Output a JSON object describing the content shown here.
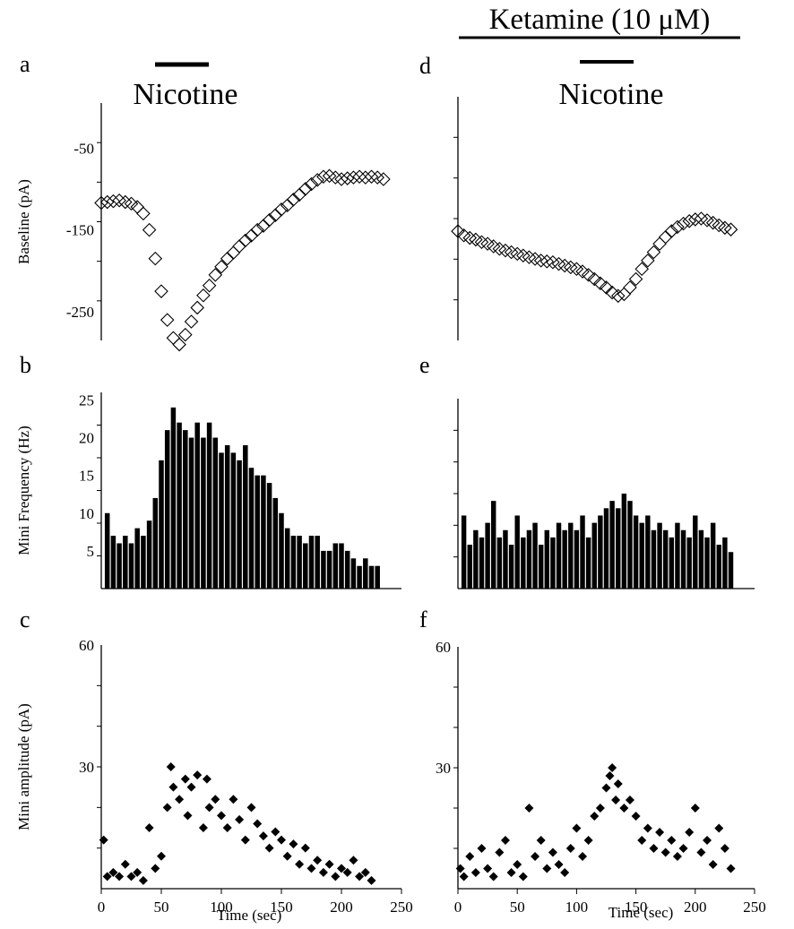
{
  "figure": {
    "header": "Ketamine (10 μM)",
    "drug_label_left": "Nicotine",
    "drug_label_right": "Nicotine",
    "panel_letters": [
      "a",
      "b",
      "c",
      "d",
      "e",
      "f"
    ],
    "x_axis_label": "Time (sec)",
    "colors": {
      "ink": "#000000",
      "background": "#ffffff"
    }
  },
  "chart_data": [
    {
      "id": "a",
      "type": "scatter",
      "marker": "open-diamond",
      "ylabel": "Baseline (pA)",
      "ylim": [
        -285,
        5
      ],
      "yticks": [
        -50,
        -150,
        -250
      ],
      "xlim": [
        0,
        250
      ],
      "series": [
        {
          "x": [
            0,
            5,
            10,
            15,
            20,
            25,
            30,
            35,
            40,
            45,
            50,
            55,
            60,
            65,
            70,
            75,
            80,
            85,
            90,
            95,
            100,
            105,
            110,
            115,
            120,
            125,
            130,
            135,
            140,
            145,
            150,
            155,
            160,
            165,
            170,
            175,
            180,
            185,
            190,
            195,
            200,
            205,
            210,
            215,
            220,
            225,
            230,
            235
          ],
          "values": [
            -117,
            -116,
            -115,
            -114,
            -116,
            -118,
            -122,
            -130,
            -150,
            -185,
            -225,
            -260,
            -282,
            -290,
            -278,
            -262,
            -245,
            -230,
            -218,
            -205,
            -195,
            -185,
            -178,
            -170,
            -163,
            -157,
            -150,
            -145,
            -138,
            -132,
            -125,
            -120,
            -113,
            -107,
            -100,
            -94,
            -89,
            -85,
            -84,
            -86,
            -88,
            -87,
            -86,
            -85,
            -86,
            -85,
            -86,
            -88
          ]
        }
      ]
    },
    {
      "id": "b",
      "type": "bar",
      "ylabel": "Mini Frequency (Hz)",
      "ylim": [
        0,
        26
      ],
      "yticks": [
        5,
        10,
        15,
        20,
        25
      ],
      "xlim": [
        0,
        250
      ],
      "series": [
        {
          "x": [
            5,
            10,
            15,
            20,
            25,
            30,
            35,
            40,
            45,
            50,
            55,
            60,
            65,
            70,
            75,
            80,
            85,
            90,
            95,
            100,
            105,
            110,
            115,
            120,
            125,
            130,
            135,
            140,
            145,
            150,
            155,
            160,
            165,
            170,
            175,
            180,
            185,
            190,
            195,
            200,
            205,
            210,
            215,
            220,
            225,
            230
          ],
          "values": [
            10,
            7,
            6,
            7,
            6,
            8,
            7,
            9,
            12,
            17,
            21,
            24,
            22,
            21,
            20,
            22,
            20,
            22,
            20,
            18,
            19,
            18,
            17,
            19,
            16,
            15,
            15,
            14,
            12,
            10,
            8,
            7,
            7,
            6,
            7,
            7,
            5,
            5,
            6,
            6,
            5,
            4,
            3,
            4,
            3,
            3
          ]
        }
      ]
    },
    {
      "id": "c",
      "type": "scatter",
      "marker": "filled-diamond",
      "ylabel": "Mini amplitude (pA)",
      "ylim": [
        0,
        60
      ],
      "yticks": [
        30,
        60
      ],
      "xlim": [
        0,
        250
      ],
      "xticks": [
        0,
        50,
        100,
        150,
        200,
        250
      ],
      "xlabel": "Time (sec)",
      "series": [
        {
          "x": [
            2,
            5,
            10,
            15,
            20,
            25,
            30,
            35,
            40,
            45,
            50,
            55,
            58,
            60,
            65,
            70,
            72,
            75,
            80,
            85,
            88,
            90,
            95,
            100,
            105,
            110,
            115,
            120,
            125,
            130,
            135,
            140,
            145,
            150,
            155,
            160,
            165,
            170,
            175,
            180,
            185,
            190,
            195,
            200,
            205,
            210,
            215,
            220,
            225
          ],
          "values": [
            12,
            3,
            4,
            3,
            6,
            3,
            4,
            2,
            15,
            5,
            8,
            20,
            30,
            25,
            22,
            27,
            18,
            25,
            28,
            15,
            27,
            20,
            22,
            18,
            15,
            22,
            17,
            12,
            20,
            16,
            13,
            10,
            14,
            12,
            8,
            11,
            6,
            10,
            5,
            7,
            4,
            6,
            3,
            5,
            4,
            7,
            3,
            4,
            2
          ]
        }
      ]
    },
    {
      "id": "d",
      "type": "scatter",
      "marker": "open-diamond",
      "ylim": [
        -285,
        5
      ],
      "xlim": [
        0,
        250
      ],
      "series": [
        {
          "x": [
            0,
            5,
            10,
            15,
            20,
            25,
            30,
            35,
            40,
            45,
            50,
            55,
            60,
            65,
            70,
            75,
            80,
            85,
            90,
            95,
            100,
            105,
            110,
            115,
            120,
            125,
            130,
            135,
            140,
            145,
            150,
            155,
            160,
            165,
            170,
            175,
            180,
            185,
            190,
            195,
            200,
            205,
            210,
            215,
            220,
            225,
            230
          ],
          "values": [
            -155,
            -160,
            -163,
            -165,
            -168,
            -170,
            -173,
            -176,
            -178,
            -180,
            -182,
            -184,
            -186,
            -188,
            -190,
            -191,
            -192,
            -194,
            -196,
            -198,
            -200,
            -203,
            -207,
            -212,
            -217,
            -222,
            -228,
            -232,
            -230,
            -222,
            -212,
            -200,
            -190,
            -180,
            -170,
            -162,
            -155,
            -150,
            -146,
            -143,
            -141,
            -140,
            -142,
            -145,
            -148,
            -151,
            -153
          ]
        }
      ]
    },
    {
      "id": "e",
      "type": "bar",
      "ylim": [
        0,
        26
      ],
      "xlim": [
        0,
        250
      ],
      "series": [
        {
          "x": [
            5,
            10,
            15,
            20,
            25,
            30,
            35,
            40,
            45,
            50,
            55,
            60,
            65,
            70,
            75,
            80,
            85,
            90,
            95,
            100,
            105,
            110,
            115,
            120,
            125,
            130,
            135,
            140,
            145,
            150,
            155,
            160,
            165,
            170,
            175,
            180,
            185,
            190,
            195,
            200,
            205,
            210,
            215,
            220,
            225,
            230
          ],
          "values": [
            10,
            6,
            8,
            7,
            9,
            12,
            7,
            8,
            6,
            10,
            7,
            8,
            9,
            6,
            8,
            7,
            9,
            8,
            9,
            8,
            10,
            7,
            9,
            10,
            11,
            12,
            11,
            13,
            12,
            10,
            9,
            10,
            8,
            9,
            8,
            7,
            9,
            8,
            7,
            10,
            8,
            7,
            9,
            6,
            7,
            5
          ]
        }
      ]
    },
    {
      "id": "f",
      "type": "scatter",
      "marker": "filled-diamond",
      "ylim": [
        0,
        60
      ],
      "yticks": [
        30,
        60
      ],
      "xlim": [
        0,
        250
      ],
      "xticks": [
        0,
        50,
        100,
        150,
        200,
        250
      ],
      "xlabel": "Time (sec)",
      "series": [
        {
          "x": [
            2,
            5,
            10,
            15,
            20,
            25,
            30,
            35,
            40,
            45,
            50,
            55,
            60,
            65,
            70,
            75,
            80,
            85,
            90,
            95,
            100,
            105,
            110,
            115,
            120,
            125,
            128,
            130,
            133,
            135,
            140,
            145,
            150,
            155,
            160,
            165,
            170,
            175,
            180,
            185,
            190,
            195,
            200,
            205,
            210,
            215,
            220,
            225,
            230
          ],
          "values": [
            5,
            3,
            8,
            4,
            10,
            5,
            3,
            9,
            12,
            4,
            6,
            3,
            20,
            8,
            12,
            5,
            9,
            6,
            4,
            10,
            15,
            8,
            12,
            18,
            20,
            25,
            28,
            30,
            22,
            26,
            20,
            22,
            18,
            12,
            15,
            10,
            14,
            9,
            12,
            8,
            10,
            14,
            20,
            9,
            12,
            6,
            15,
            10,
            5
          ]
        }
      ]
    }
  ]
}
